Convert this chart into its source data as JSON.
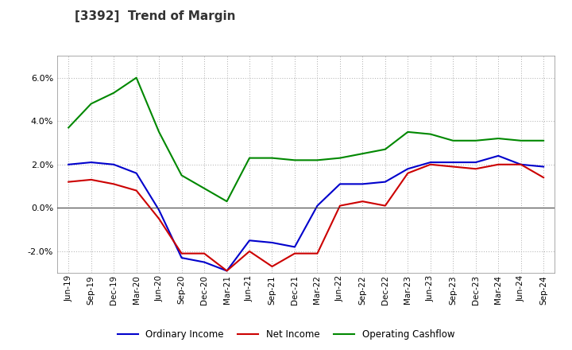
{
  "title": "[3392]  Trend of Margin",
  "title_fontsize": 11,
  "title_color": "#333333",
  "background_color": "#ffffff",
  "plot_bg_color": "#ffffff",
  "grid_color": "#aaaaaa",
  "ylim": [
    -3.0,
    7.0
  ],
  "yticks": [
    -2.0,
    0.0,
    2.0,
    4.0,
    6.0
  ],
  "x_labels": [
    "Jun-19",
    "Sep-19",
    "Dec-19",
    "Mar-20",
    "Jun-20",
    "Sep-20",
    "Dec-20",
    "Mar-21",
    "Jun-21",
    "Sep-21",
    "Dec-21",
    "Mar-22",
    "Jun-22",
    "Sep-22",
    "Dec-22",
    "Mar-23",
    "Jun-23",
    "Sep-23",
    "Dec-23",
    "Mar-24",
    "Jun-24",
    "Sep-24"
  ],
  "ordinary_income": [
    2.0,
    2.1,
    2.0,
    1.6,
    -0.1,
    -2.3,
    -2.5,
    -2.9,
    -1.5,
    -1.6,
    -1.8,
    0.1,
    1.1,
    1.1,
    1.2,
    1.8,
    2.1,
    2.1,
    2.1,
    2.4,
    2.0,
    1.9
  ],
  "net_income": [
    1.2,
    1.3,
    1.1,
    0.8,
    -0.5,
    -2.1,
    -2.1,
    -2.9,
    -2.0,
    -2.7,
    -2.1,
    -2.1,
    0.1,
    0.3,
    0.1,
    1.6,
    2.0,
    1.9,
    1.8,
    2.0,
    2.0,
    1.4
  ],
  "operating_cashflow": [
    3.7,
    4.8,
    5.3,
    6.0,
    3.5,
    1.5,
    0.9,
    0.3,
    2.3,
    2.3,
    2.2,
    2.2,
    2.3,
    2.5,
    2.7,
    3.5,
    3.4,
    3.1,
    3.1,
    3.2,
    3.1,
    3.1
  ],
  "line_colors": {
    "ordinary_income": "#0000cc",
    "net_income": "#cc0000",
    "operating_cashflow": "#008800"
  },
  "legend_labels": [
    "Ordinary Income",
    "Net Income",
    "Operating Cashflow"
  ]
}
